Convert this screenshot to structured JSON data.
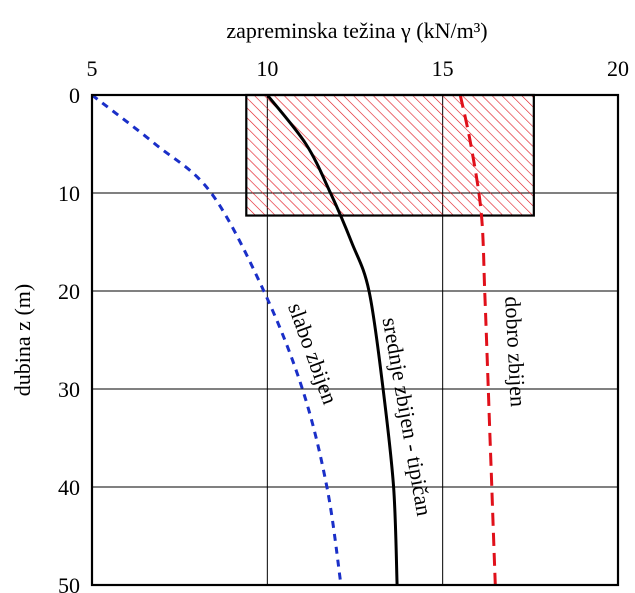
{
  "chart_data": {
    "type": "line",
    "xlabel": "zapreminska težina γ (kN/m³)",
    "ylabel": "dubina z (m)",
    "xlim": [
      5,
      20
    ],
    "ylim": [
      0,
      50
    ],
    "y_inverted": true,
    "x_axis_position": "top",
    "grid": true,
    "x_ticks": [
      5,
      10,
      15,
      20
    ],
    "y_ticks": [
      0,
      10,
      20,
      30,
      40,
      50
    ],
    "x_tick_labels": [
      "5",
      "10",
      "15",
      "20"
    ],
    "y_tick_labels": [
      "0",
      "10",
      "20",
      "30",
      "40",
      "50"
    ],
    "series": [
      {
        "name": "slabo zbijen",
        "color": "#1a2fc8",
        "dash": "dashed",
        "x": [
          5.0,
          6.8,
          8.4,
          9.9,
          11.0,
          11.7,
          12.1
        ],
        "y": [
          0,
          5,
          10,
          20,
          30,
          40,
          50
        ]
      },
      {
        "name": "srednje zbijen - tipičan",
        "color": "#000000",
        "dash": "solid",
        "x": [
          10.0,
          11.1,
          11.8,
          12.4,
          12.9,
          13.3,
          13.6,
          13.7
        ],
        "y": [
          0,
          5,
          10,
          15,
          20,
          30,
          40,
          50
        ]
      },
      {
        "name": "dobro zbijen",
        "color": "#e0101a",
        "dash": "dashed",
        "x": [
          15.5,
          15.8,
          16.1,
          16.2,
          16.3,
          16.4,
          16.5
        ],
        "y": [
          0,
          5,
          12,
          20,
          30,
          40,
          50
        ]
      }
    ],
    "shaded_region": {
      "x": [
        9.4,
        17.6
      ],
      "y": [
        0,
        12.3
      ],
      "color": "#e0101a",
      "pattern": "hatched"
    }
  }
}
